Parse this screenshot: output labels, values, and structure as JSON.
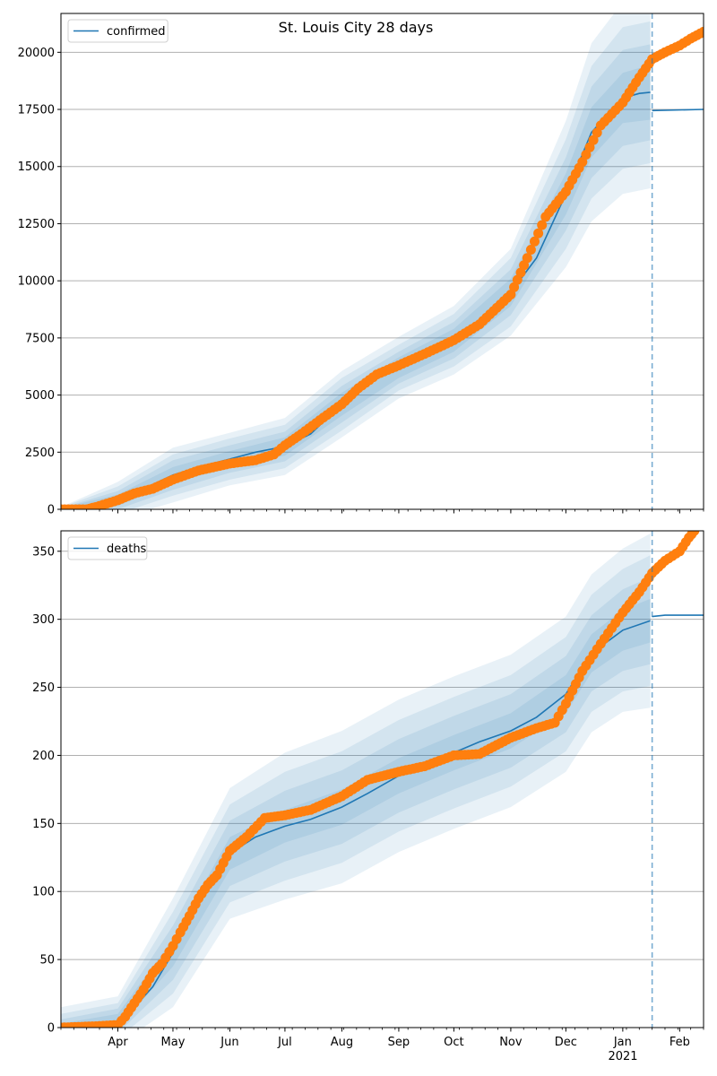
{
  "title": "St. Louis City 28 days",
  "colors": {
    "model": "#1f77b4",
    "observed": "#ff7f0e",
    "band": "#1f77b4",
    "grid": "#b0b0b0"
  },
  "x_axis": {
    "start": "2020-03-01",
    "end": "2021-02-14",
    "forecast_start": "2021-01-17",
    "month_ticks": [
      {
        "date": "2020-04-01",
        "label": "Apr"
      },
      {
        "date": "2020-05-01",
        "label": "May"
      },
      {
        "date": "2020-06-01",
        "label": "Jun"
      },
      {
        "date": "2020-07-01",
        "label": "Jul"
      },
      {
        "date": "2020-08-01",
        "label": "Aug"
      },
      {
        "date": "2020-09-01",
        "label": "Sep"
      },
      {
        "date": "2020-10-01",
        "label": "Oct"
      },
      {
        "date": "2020-11-01",
        "label": "Nov"
      },
      {
        "date": "2020-12-01",
        "label": "Dec"
      },
      {
        "date": "2021-01-01",
        "label": "Jan"
      },
      {
        "date": "2021-02-01",
        "label": "Feb"
      }
    ],
    "year_label": "2021"
  },
  "chart_data": [
    {
      "type": "line",
      "legend": "confirmed",
      "legend_position": "upper-left",
      "grid": "horizontal",
      "ylim": [
        0,
        21700
      ],
      "yticks": [
        0,
        2500,
        5000,
        7500,
        10000,
        12500,
        15000,
        17500,
        20000
      ],
      "model": {
        "x": [
          "2020-03-01",
          "2020-03-15",
          "2020-04-01",
          "2020-04-15",
          "2020-05-01",
          "2020-05-15",
          "2020-06-01",
          "2020-06-15",
          "2020-07-01",
          "2020-07-15",
          "2020-08-01",
          "2020-08-15",
          "2020-09-01",
          "2020-09-15",
          "2020-10-01",
          "2020-10-15",
          "2020-11-01",
          "2020-11-15",
          "2020-12-01",
          "2020-12-15",
          "2021-01-01",
          "2021-01-10",
          "2021-01-16"
        ],
        "y": [
          0,
          50,
          400,
          900,
          1500,
          1850,
          2200,
          2500,
          2750,
          3300,
          4600,
          5700,
          6200,
          6700,
          7400,
          8300,
          9500,
          11000,
          13800,
          16500,
          18000,
          18200,
          18250
        ]
      },
      "forecast": {
        "x": [
          "2021-01-17",
          "2021-02-14"
        ],
        "y": [
          17450,
          17500
        ]
      },
      "bands": {
        "x": [
          "2020-03-01",
          "2020-04-01",
          "2020-05-01",
          "2020-06-01",
          "2020-07-01",
          "2020-08-01",
          "2020-09-01",
          "2020-10-01",
          "2020-11-01",
          "2020-12-01",
          "2020-12-15",
          "2021-01-01",
          "2021-01-16"
        ],
        "center": [
          0,
          400,
          1500,
          2200,
          2750,
          4600,
          6200,
          7400,
          9500,
          13800,
          16500,
          18000,
          18250
        ],
        "half_widths": [
          [
            50,
            250,
            350,
            350,
            400,
            500,
            450,
            500,
            600,
            900,
            1100,
            1100,
            1200
          ],
          [
            50,
            400,
            650,
            600,
            650,
            800,
            700,
            800,
            1000,
            1600,
            2000,
            2100,
            2100
          ],
          [
            80,
            600,
            900,
            900,
            950,
            1150,
            1000,
            1150,
            1500,
            2400,
            2900,
            3100,
            3100
          ],
          [
            100,
            800,
            1200,
            1150,
            1250,
            1450,
            1350,
            1500,
            1900,
            3200,
            3900,
            4200,
            4200
          ]
        ]
      },
      "observed": {
        "x": [
          "2020-03-01",
          "2020-03-15",
          "2020-03-20",
          "2020-04-01",
          "2020-04-10",
          "2020-04-20",
          "2020-05-01",
          "2020-05-15",
          "2020-06-01",
          "2020-06-15",
          "2020-06-25",
          "2020-07-01",
          "2020-07-10",
          "2020-07-20",
          "2020-08-01",
          "2020-08-10",
          "2020-08-20",
          "2020-09-01",
          "2020-09-15",
          "2020-10-01",
          "2020-10-15",
          "2020-11-01",
          "2020-11-10",
          "2020-11-20",
          "2020-12-01",
          "2020-12-10",
          "2020-12-20",
          "2021-01-01",
          "2021-01-10",
          "2021-01-17",
          "2021-01-24",
          "2021-02-01",
          "2021-02-07",
          "2021-02-14"
        ],
        "y": [
          0,
          0,
          100,
          400,
          700,
          900,
          1300,
          1700,
          2000,
          2150,
          2400,
          2800,
          3300,
          3900,
          4600,
          5300,
          5900,
          6300,
          6800,
          7400,
          8100,
          9400,
          11000,
          12800,
          13900,
          15200,
          16800,
          17800,
          18900,
          19700,
          20000,
          20300,
          20600,
          20900
        ]
      }
    },
    {
      "type": "line",
      "legend": "deaths",
      "legend_position": "upper-left",
      "grid": "horizontal",
      "ylim": [
        0,
        365
      ],
      "yticks": [
        0,
        50,
        100,
        150,
        200,
        250,
        300,
        350
      ],
      "model": {
        "x": [
          "2020-03-01",
          "2020-03-15",
          "2020-04-01",
          "2020-04-10",
          "2020-04-20",
          "2020-05-01",
          "2020-05-10",
          "2020-05-20",
          "2020-06-01",
          "2020-06-15",
          "2020-07-01",
          "2020-07-15",
          "2020-08-01",
          "2020-08-15",
          "2020-09-01",
          "2020-09-15",
          "2020-10-01",
          "2020-10-15",
          "2020-11-01",
          "2020-11-15",
          "2020-12-01",
          "2020-12-15",
          "2021-01-01",
          "2021-01-16"
        ],
        "y": [
          0,
          1,
          5,
          15,
          30,
          55,
          80,
          105,
          128,
          140,
          148,
          153,
          162,
          172,
          185,
          193,
          202,
          210,
          218,
          228,
          245,
          275,
          292,
          299
        ]
      },
      "forecast": {
        "x": [
          "2021-01-17",
          "2021-01-24",
          "2021-02-14"
        ],
        "y": [
          302,
          303,
          303
        ]
      },
      "bands": {
        "x": [
          "2020-03-01",
          "2020-04-01",
          "2020-05-01",
          "2020-06-01",
          "2020-07-01",
          "2020-08-01",
          "2020-09-01",
          "2020-10-01",
          "2020-11-01",
          "2020-12-01",
          "2020-12-15",
          "2021-01-01",
          "2021-01-16"
        ],
        "center": [
          0,
          5,
          55,
          128,
          148,
          162,
          185,
          202,
          218,
          245,
          275,
          292,
          299
        ],
        "half_widths": [
          [
            3,
            5,
            10,
            12,
            12,
            13,
            13,
            13,
            13,
            14,
            14,
            15,
            16
          ],
          [
            6,
            9,
            20,
            24,
            26,
            27,
            27,
            27,
            27,
            28,
            28,
            30,
            32
          ],
          [
            10,
            13,
            30,
            36,
            40,
            41,
            41,
            41,
            41,
            42,
            43,
            45,
            48
          ],
          [
            15,
            18,
            40,
            48,
            54,
            56,
            56,
            56,
            56,
            57,
            58,
            60,
            64
          ]
        ]
      },
      "observed": {
        "x": [
          "2020-03-01",
          "2020-03-20",
          "2020-04-01",
          "2020-04-05",
          "2020-04-10",
          "2020-04-15",
          "2020-04-20",
          "2020-04-25",
          "2020-05-01",
          "2020-05-05",
          "2020-05-10",
          "2020-05-15",
          "2020-05-20",
          "2020-05-25",
          "2020-06-01",
          "2020-06-10",
          "2020-06-20",
          "2020-07-01",
          "2020-07-15",
          "2020-08-01",
          "2020-08-15",
          "2020-09-01",
          "2020-09-15",
          "2020-10-01",
          "2020-10-15",
          "2020-11-01",
          "2020-11-15",
          "2020-11-25",
          "2020-12-01",
          "2020-12-10",
          "2020-12-20",
          "2021-01-01",
          "2021-01-10",
          "2021-01-17",
          "2021-01-24",
          "2021-02-01",
          "2021-02-06",
          "2021-02-09"
        ],
        "y": [
          0,
          1,
          2,
          8,
          18,
          28,
          40,
          47,
          60,
          70,
          82,
          95,
          105,
          112,
          130,
          140,
          154,
          156,
          160,
          170,
          182,
          188,
          192,
          200,
          201,
          213,
          220,
          224,
          238,
          262,
          282,
          305,
          320,
          334,
          343,
          350,
          360,
          365
        ]
      }
    }
  ]
}
